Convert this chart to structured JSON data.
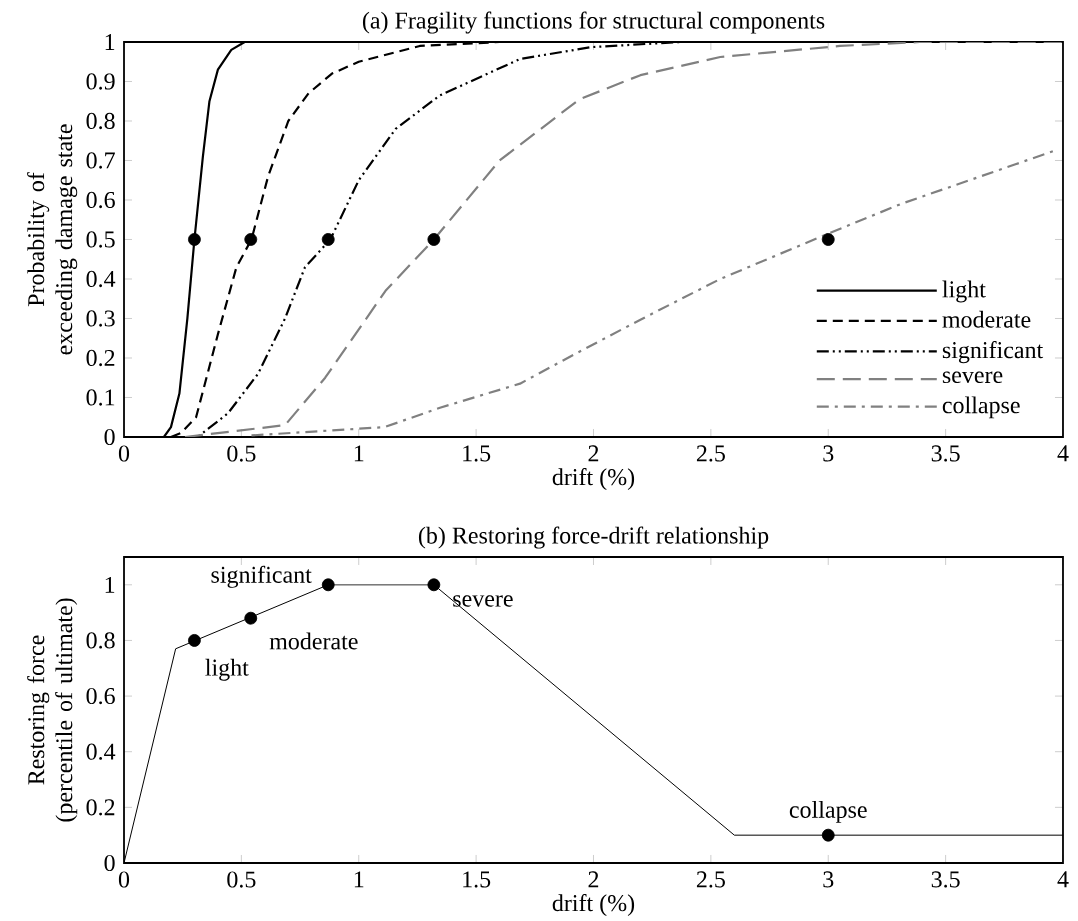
{
  "chart_data": [
    {
      "type": "line",
      "title": "(a) Fragility functions for structural components",
      "xlabel": "drift (%)",
      "ylabel": "Probability of exceeding damage state",
      "xlim": [
        0,
        4
      ],
      "ylim": [
        0,
        1
      ],
      "xticks": [
        0,
        0.5,
        1,
        1.5,
        2,
        2.5,
        3,
        3.5,
        4
      ],
      "yticks": [
        0,
        0.1,
        0.2,
        0.3,
        0.4,
        0.5,
        0.6,
        0.7,
        0.8,
        0.9,
        1
      ],
      "legend": "bottom right",
      "grid": false,
      "series": [
        {
          "name": "light",
          "color": "#000000",
          "line_style": "solid",
          "x": [
            0.1,
            0.17,
            0.2,
            0.236,
            0.27,
            0.3,
            0.336,
            0.364,
            0.4,
            0.457,
            0.514,
            1.0,
            2.6
          ],
          "values": [
            0,
            0,
            0.025,
            0.11,
            0.3,
            0.5,
            0.71,
            0.85,
            0.93,
            0.98,
            1.0,
            1.0,
            1.0
          ]
        },
        {
          "name": "moderate",
          "color": "#000000",
          "line_style": "dashed",
          "x": [
            0.2,
            0.243,
            0.307,
            0.4,
            0.479,
            0.543,
            0.614,
            0.7,
            0.786,
            0.886,
            1.0,
            1.26,
            1.6,
            2.57
          ],
          "values": [
            0,
            0.01,
            0.05,
            0.26,
            0.43,
            0.5,
            0.66,
            0.8,
            0.87,
            0.92,
            0.95,
            0.99,
            1.0,
            1.0
          ]
        },
        {
          "name": "significant",
          "color": "#000000",
          "line_style": "dashdotdot",
          "x": [
            0.25,
            0.314,
            0.443,
            0.571,
            0.686,
            0.771,
            0.879,
            1.0,
            1.157,
            1.346,
            1.687,
            1.99,
            2.37,
            2.5
          ],
          "values": [
            0,
            0,
            0.06,
            0.16,
            0.3,
            0.43,
            0.5,
            0.65,
            0.78,
            0.865,
            0.957,
            0.987,
            1.0,
            1.0
          ]
        },
        {
          "name": "severe",
          "color": "#808080",
          "line_style": "longdash",
          "x": [
            0.26,
            0.686,
            0.857,
            1.114,
            1.32,
            1.6,
            1.94,
            2.2,
            2.54,
            3.05,
            3.39,
            4
          ],
          "values": [
            0,
            0.03,
            0.15,
            0.37,
            0.5,
            0.7,
            0.855,
            0.916,
            0.962,
            0.99,
            1.0,
            1.0
          ]
        },
        {
          "name": "collapse",
          "color": "#808080",
          "line_style": "dashdot",
          "x": [
            0.543,
            1.11,
            1.346,
            1.687,
            1.94,
            2.2,
            2.54,
            2.98,
            3.31,
            3.65,
            3.97
          ],
          "values": [
            0.004,
            0.025,
            0.074,
            0.135,
            0.216,
            0.297,
            0.4,
            0.51,
            0.59,
            0.66,
            0.726
          ]
        },
        {
          "type": "scatter",
          "marker": "circle",
          "color": "#000000",
          "x": [
            0.3,
            0.54,
            0.87,
            1.32,
            3.0
          ],
          "values": [
            0.5,
            0.5,
            0.5,
            0.5,
            0.5
          ]
        }
      ]
    },
    {
      "type": "line",
      "title": "(b) Restoring force-drift relationship",
      "xlabel": "drift (%)",
      "ylabel": "Restoring force (percentile of ultimate)",
      "xlim": [
        0,
        4
      ],
      "ylim": [
        0,
        1.1
      ],
      "xticks": [
        0,
        0.5,
        1,
        1.5,
        2,
        2.5,
        3,
        3.5,
        4
      ],
      "yticks": [
        0,
        0.2,
        0.4,
        0.6,
        0.8,
        1
      ],
      "grid": false,
      "series": [
        {
          "color": "#000000",
          "x": [
            0,
            0.22,
            0.87,
            1.32,
            2.6,
            4
          ],
          "values": [
            0,
            0.77,
            1.0,
            1.0,
            0.1,
            0.1
          ]
        },
        {
          "type": "scatter",
          "marker": "circle",
          "color": "#000000",
          "x": [
            0.3,
            0.54,
            0.87,
            1.32,
            3.0
          ],
          "values": [
            0.8,
            0.88,
            1.0,
            1.0,
            0.1
          ]
        }
      ],
      "annotations": [
        {
          "text": "light",
          "x": 0.3,
          "y": 0.8
        },
        {
          "text": "moderate",
          "x": 0.54,
          "y": 0.88
        },
        {
          "text": "significant",
          "x": 0.87,
          "y": 1.0
        },
        {
          "text": "severe",
          "x": 1.32,
          "y": 1.0
        },
        {
          "text": "collapse",
          "x": 3.0,
          "y": 0.1
        }
      ]
    }
  ]
}
